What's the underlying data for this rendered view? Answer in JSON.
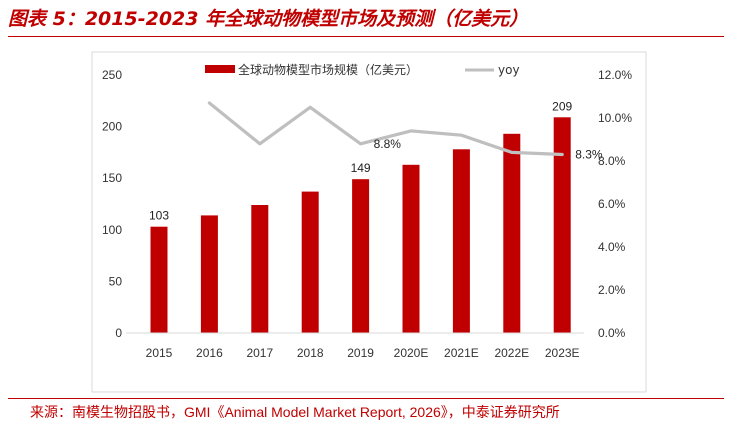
{
  "header": {
    "title": "图表 5：2015-2023 年全球动物模型市场及预测（亿美元）"
  },
  "footer": {
    "source_prefix": "来源：南模生物招股书，",
    "source_latin": "GMI《Animal Model Market Report, 2026》",
    "source_suffix": "，中泰证券研究所"
  },
  "colors": {
    "accent": "#c00000",
    "bar": "#c00000",
    "line": "#bfbfbf",
    "frame": "#d9d9d9"
  },
  "chart_data": {
    "type": "bar",
    "categories": [
      "2015",
      "2016",
      "2017",
      "2018",
      "2019",
      "2020E",
      "2021E",
      "2022E",
      "2023E"
    ],
    "series": [
      {
        "name": "全球动物模型市场规模（亿美元）",
        "type": "bar",
        "axis": "left",
        "values": [
          103,
          114,
          124,
          137,
          149,
          163,
          178,
          193,
          209
        ]
      },
      {
        "name": "yoy",
        "type": "line",
        "axis": "right",
        "values": [
          null,
          10.7,
          8.8,
          10.5,
          8.8,
          9.4,
          9.2,
          8.4,
          8.3
        ]
      }
    ],
    "y_left": {
      "ylim": [
        0,
        250
      ],
      "ticks": [
        "0",
        "50",
        "100",
        "150",
        "200",
        "250"
      ]
    },
    "y_right": {
      "ylim": [
        0,
        12
      ],
      "ticks": [
        "0.0%",
        "2.0%",
        "4.0%",
        "6.0%",
        "8.0%",
        "10.0%",
        "12.0%"
      ]
    },
    "bar_labels": [
      {
        "index": 0,
        "text": "103"
      },
      {
        "index": 4,
        "text": "149"
      },
      {
        "index": 8,
        "text": "209"
      }
    ],
    "line_labels": [
      {
        "index": 4,
        "text": "8.8%"
      },
      {
        "index": 8,
        "text": "8.3%"
      }
    ],
    "legend_position": "top",
    "grid": false
  }
}
